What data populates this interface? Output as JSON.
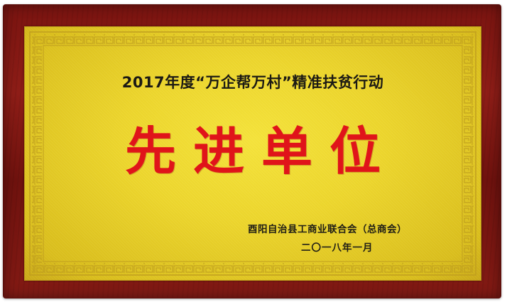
{
  "plaque": {
    "headline": "2017年度“万企帮万村”精准扶贫行动",
    "award_title": "先进单位",
    "issuer": "酉阳自治县工商业联合会（总商会）",
    "date": "二〇一八年一月"
  },
  "colors": {
    "frame": "#7a1410",
    "plate": "#ecd52c",
    "award_text": "#e0141a",
    "body_text": "#1c1a14"
  }
}
